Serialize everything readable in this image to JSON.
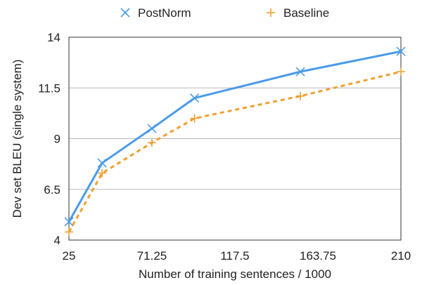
{
  "chart_data": {
    "type": "line",
    "xlabel": "Number of training sentences / 1000",
    "ylabel": "Dev set BLEU (single system)",
    "xlim": [
      25,
      210
    ],
    "ylim": [
      4,
      14
    ],
    "x_ticks": [
      "25",
      "71.25",
      "117.5",
      "163.75",
      "210"
    ],
    "y_ticks": [
      "4",
      "6.5",
      "9",
      "11.5",
      "14"
    ],
    "grid": "horizontal",
    "legend_position": "top",
    "series": [
      {
        "name": "PostNorm",
        "color": "#4a9be8",
        "marker": "x",
        "line_style": "solid",
        "points": [
          [
            25,
            4.9
          ],
          [
            43.5,
            7.8
          ],
          [
            71.25,
            9.5
          ],
          [
            95,
            11.0
          ],
          [
            154,
            12.3
          ],
          [
            210,
            13.3
          ]
        ]
      },
      {
        "name": "Baseline",
        "color": "#f0a030",
        "marker": "+",
        "line_style": "dashed",
        "points": [
          [
            25,
            4.4
          ],
          [
            43.5,
            7.3
          ],
          [
            71.25,
            8.8
          ],
          [
            95,
            10.0
          ],
          [
            154,
            11.1
          ],
          [
            210,
            12.3
          ]
        ]
      }
    ]
  }
}
